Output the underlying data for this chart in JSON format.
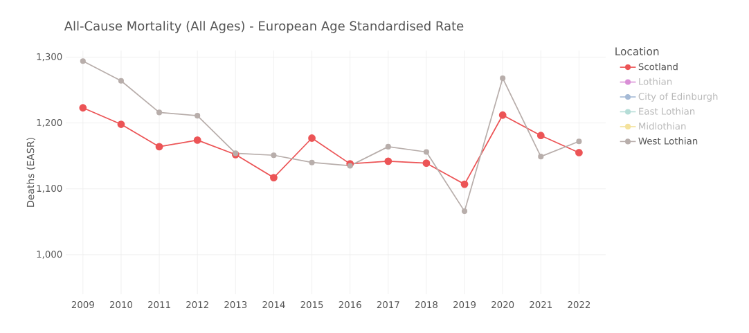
{
  "chart_data": {
    "type": "line",
    "title": "All-Cause Mortality (All Ages) - European Age Standardised Rate",
    "ylabel": "Deaths (EASR)",
    "legend_title": "Location",
    "categories": [
      "2009",
      "2010",
      "2011",
      "2012",
      "2013",
      "2014",
      "2015",
      "2016",
      "2017",
      "2018",
      "2019",
      "2020",
      "2021",
      "2022"
    ],
    "series": [
      {
        "name": "Scotland",
        "color": "#ec5456",
        "values": [
          1223,
          1198,
          1164,
          1174,
          1152,
          1117,
          1177,
          1138,
          1142,
          1139,
          1107,
          1212,
          1181,
          1155
        ]
      },
      {
        "name": "Lothian",
        "color": "#d98fd6",
        "values": [
          null,
          null,
          null,
          null,
          null,
          null,
          null,
          null,
          null,
          null,
          null,
          null,
          null,
          null
        ]
      },
      {
        "name": "City of Edinburgh",
        "color": "#a5bad6",
        "values": [
          null,
          null,
          null,
          null,
          null,
          null,
          null,
          null,
          null,
          null,
          null,
          null,
          null,
          null
        ]
      },
      {
        "name": "East Lothian",
        "color": "#b5ddd7",
        "values": [
          null,
          null,
          null,
          null,
          null,
          null,
          null,
          null,
          null,
          null,
          null,
          null,
          null,
          null
        ]
      },
      {
        "name": "Midlothian",
        "color": "#f4e29c",
        "values": [
          null,
          null,
          null,
          null,
          null,
          null,
          null,
          null,
          null,
          null,
          null,
          null,
          null,
          null
        ]
      },
      {
        "name": "West Lothian",
        "color": "#b8aeab",
        "values": [
          1294,
          1264,
          1216,
          1211,
          1154,
          1151,
          1140,
          1135,
          1164,
          1156,
          1066,
          1268,
          1149,
          1172
        ]
      }
    ],
    "ylim": [
      940,
      1310
    ],
    "yticks": [
      {
        "value": 1000,
        "label": "1,000"
      },
      {
        "value": 1100,
        "label": "1,100"
      },
      {
        "value": 1200,
        "label": "1,200"
      },
      {
        "value": 1300,
        "label": "1,300"
      }
    ],
    "grid": true,
    "legend": "right",
    "marker": "circle",
    "line_style": "solid"
  }
}
